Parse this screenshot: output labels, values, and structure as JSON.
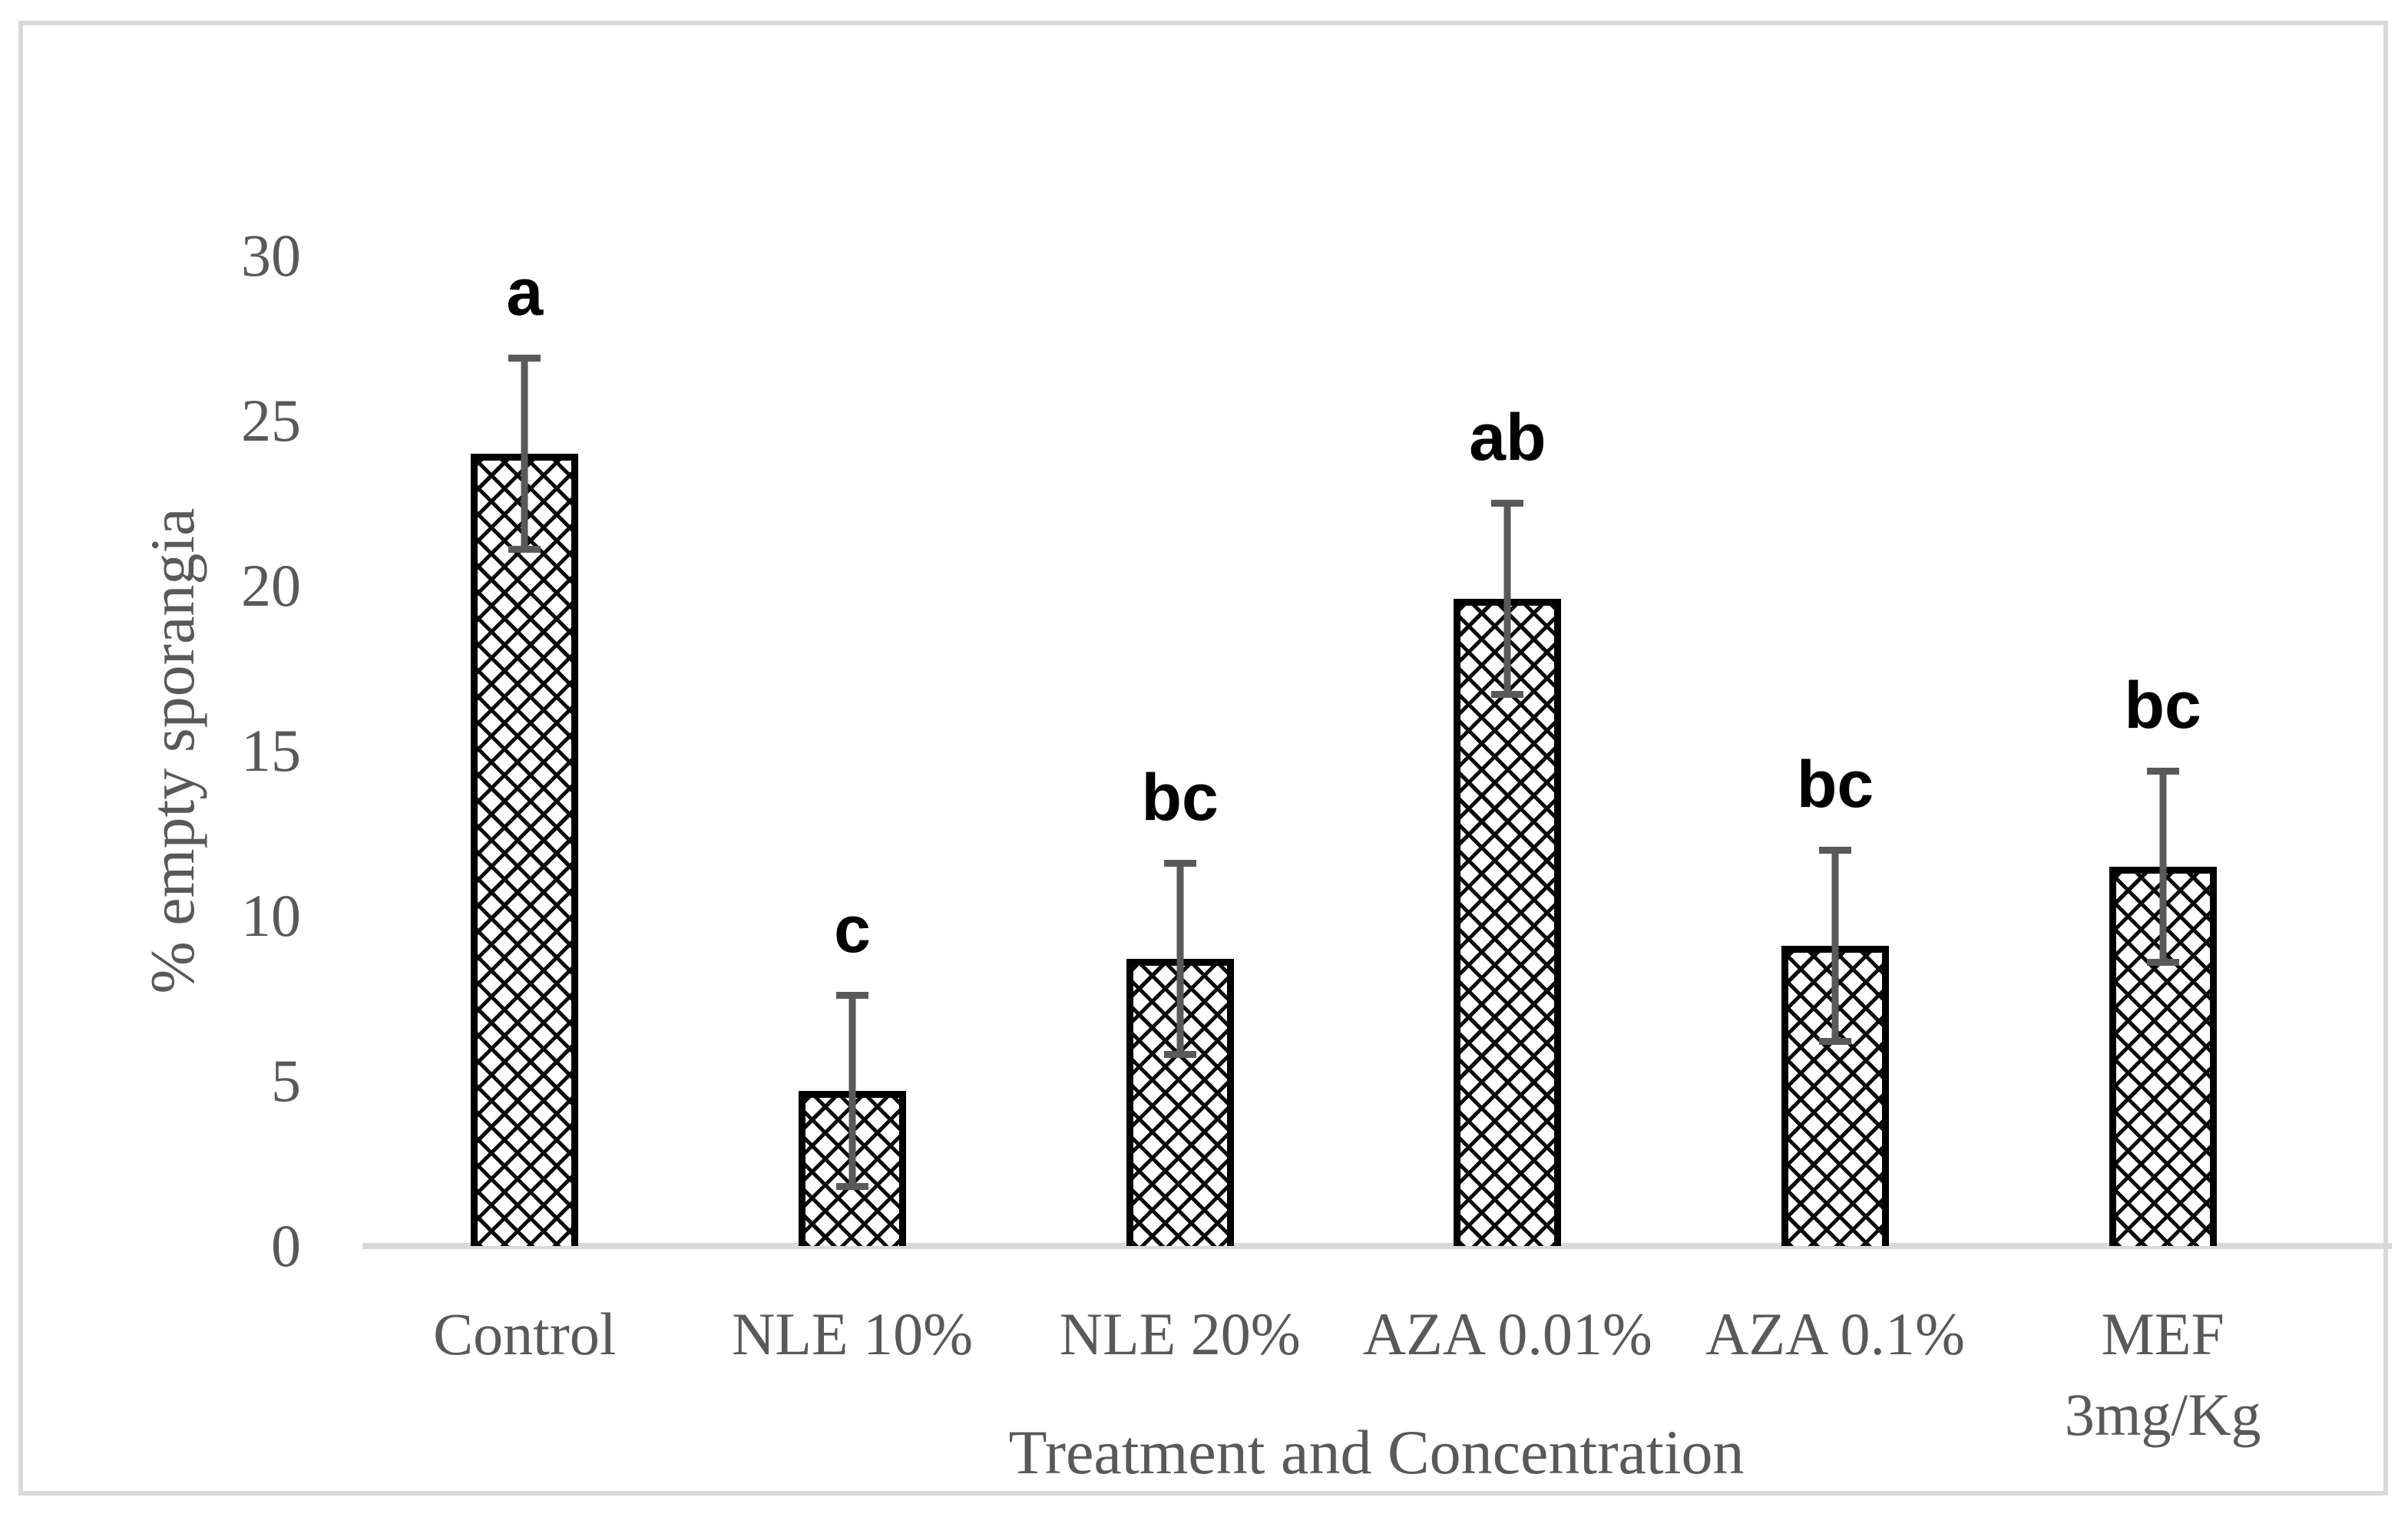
{
  "figure": {
    "background": "#ffffff",
    "frame_border_color": "#d9d9d9"
  },
  "chart_data": {
    "type": "bar",
    "title": "",
    "xlabel": "Treatment and Concentration",
    "ylabel": "% empty sporangia",
    "ylim": [
      0,
      30
    ],
    "yticks": [
      0,
      5,
      10,
      15,
      20,
      25,
      30
    ],
    "grid": false,
    "legend": null,
    "categories": [
      "Control",
      "NLE 10%",
      "NLE 20%",
      "AZA 0.01%",
      "AZA 0.1%",
      "MEF 3mg/Kg"
    ],
    "category_label_lines": [
      [
        "Control"
      ],
      [
        "NLE 10%"
      ],
      [
        "NLE 20%"
      ],
      [
        "AZA 0.01%"
      ],
      [
        "AZA 0.1%"
      ],
      [
        "MEF",
        "3mg/Kg"
      ]
    ],
    "series": [
      {
        "name": "% empty sporangia",
        "values": [
          24,
          4.7,
          8.7,
          19.6,
          9.1,
          11.5
        ],
        "error_low": [
          21,
          1.7,
          5.7,
          16.6,
          6.1,
          8.5
        ],
        "error_high": [
          27,
          7.7,
          11.7,
          22.6,
          12.1,
          14.5
        ],
        "significance_letters": [
          "a",
          "c",
          "bc",
          "ab",
          "bc",
          "bc"
        ]
      }
    ],
    "style": {
      "bar_fill": "#ffffff",
      "bar_pattern": "dotted-diamond-crosshatch",
      "bar_border_color": "#000000",
      "error_bar_color": "#595959",
      "significance_letter_color": "#000000",
      "axis_text_color": "#595959",
      "baseline_color": "#d9d9d9"
    }
  }
}
